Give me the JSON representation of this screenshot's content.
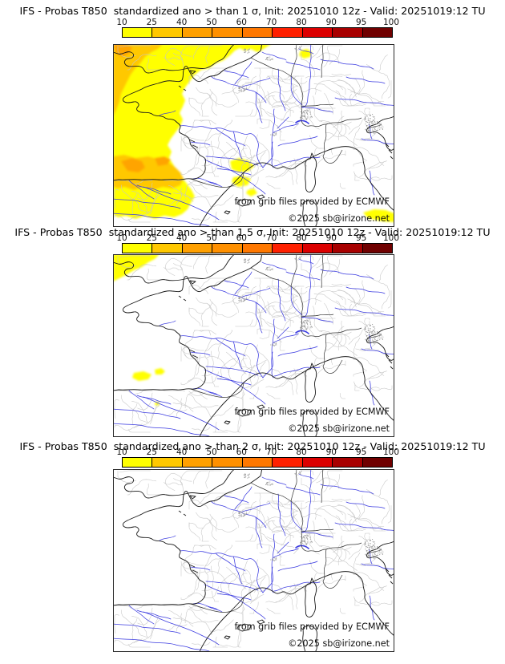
{
  "panels": [
    {
      "title": "IFS - Probas T850  standardized ano > than 1 σ, Init: 20251010 12z - Valid: 20251019:12 TU",
      "threshold_sigma": "1",
      "shading": [
        {
          "color": "#FFFF00",
          "points": [
            [
              167,
              0
            ],
            [
              160,
              4
            ],
            [
              152,
              8
            ],
            [
              146,
              14
            ],
            [
              138,
              20
            ],
            [
              128,
              24
            ],
            [
              120,
              30
            ],
            [
              110,
              32
            ],
            [
              102,
              38
            ],
            [
              96,
              46
            ],
            [
              90,
              54
            ],
            [
              86,
              62
            ],
            [
              90,
              70
            ],
            [
              87,
              78
            ],
            [
              83,
              86
            ],
            [
              87,
              94
            ],
            [
              84,
              102
            ],
            [
              78,
              110
            ],
            [
              72,
              118
            ],
            [
              68,
              126
            ],
            [
              73,
              134
            ],
            [
              70,
              142
            ],
            [
              75,
              150
            ],
            [
              80,
              158
            ],
            [
              86,
              166
            ],
            [
              92,
              174
            ],
            [
              98,
              182
            ],
            [
              102,
              190
            ],
            [
              97,
              198
            ],
            [
              93,
              206
            ],
            [
              86,
              212
            ],
            [
              76,
              216
            ],
            [
              64,
              214
            ],
            [
              52,
              218
            ],
            [
              40,
              214
            ],
            [
              28,
              218
            ],
            [
              16,
              214
            ],
            [
              6,
              216
            ],
            [
              0,
              212
            ],
            [
              0,
              0
            ]
          ]
        },
        {
          "color": "#FFFF00",
          "points": [
            [
              150,
              0
            ],
            [
              156,
              4
            ],
            [
              164,
              8
            ],
            [
              172,
              6
            ],
            [
              180,
              10
            ],
            [
              188,
              6
            ],
            [
              194,
              2
            ],
            [
              198,
              0
            ]
          ]
        },
        {
          "color": "#FFFF00",
          "points": [
            [
              234,
              8
            ],
            [
              242,
              6
            ],
            [
              248,
              10
            ],
            [
              246,
              16
            ],
            [
              238,
              18
            ],
            [
              232,
              14
            ]
          ]
        },
        {
          "color": "#FFFF00",
          "points": [
            [
              146,
              146
            ],
            [
              158,
              142
            ],
            [
              170,
              146
            ],
            [
              176,
              152
            ],
            [
              170,
              158
            ],
            [
              158,
              160
            ],
            [
              148,
              156
            ]
          ]
        },
        {
          "color": "#FFFF00",
          "points": [
            [
              150,
              166
            ],
            [
              162,
              164
            ],
            [
              172,
              168
            ],
            [
              168,
              176
            ],
            [
              156,
              178
            ],
            [
              148,
              172
            ]
          ]
        },
        {
          "color": "#FFFF00",
          "points": [
            [
              168,
              182
            ],
            [
              176,
              180
            ],
            [
              180,
              186
            ],
            [
              172,
              190
            ],
            [
              166,
              186
            ]
          ]
        },
        {
          "color": "#FFFF00",
          "points": [
            [
              312,
              210
            ],
            [
              326,
              206
            ],
            [
              340,
              207
            ],
            [
              351,
              211
            ],
            [
              351,
              222
            ],
            [
              336,
              221
            ],
            [
              318,
              217
            ]
          ]
        },
        {
          "color": "#FFC800",
          "points": [
            [
              62,
              0
            ],
            [
              56,
              6
            ],
            [
              48,
              10
            ],
            [
              40,
              16
            ],
            [
              34,
              24
            ],
            [
              28,
              30
            ],
            [
              22,
              38
            ],
            [
              18,
              46
            ],
            [
              14,
              54
            ],
            [
              10,
              62
            ],
            [
              8,
              72
            ],
            [
              4,
              82
            ],
            [
              0,
              90
            ],
            [
              0,
              0
            ]
          ]
        },
        {
          "color": "#FFC800",
          "points": [
            [
              0,
              140
            ],
            [
              14,
              138
            ],
            [
              28,
              142
            ],
            [
              44,
              140
            ],
            [
              58,
              144
            ],
            [
              70,
              148
            ],
            [
              78,
              154
            ],
            [
              84,
              160
            ],
            [
              88,
              168
            ],
            [
              84,
              176
            ],
            [
              74,
              180
            ],
            [
              62,
              178
            ],
            [
              50,
              182
            ],
            [
              38,
              178
            ],
            [
              26,
              182
            ],
            [
              14,
              178
            ],
            [
              6,
              180
            ],
            [
              0,
              178
            ]
          ]
        },
        {
          "color": "#FFA400",
          "points": [
            [
              0,
              0
            ],
            [
              16,
              0
            ],
            [
              24,
              4
            ],
            [
              20,
              12
            ],
            [
              12,
              16
            ],
            [
              4,
              12
            ]
          ]
        },
        {
          "color": "#FFA400",
          "points": [
            [
              10,
              146
            ],
            [
              24,
              142
            ],
            [
              36,
              146
            ],
            [
              40,
              154
            ],
            [
              32,
              160
            ],
            [
              18,
              158
            ]
          ]
        },
        {
          "color": "#FFA400",
          "points": [
            [
              52,
              142
            ],
            [
              64,
              140
            ],
            [
              72,
              144
            ],
            [
              68,
              150
            ],
            [
              56,
              152
            ]
          ]
        }
      ]
    },
    {
      "title": "IFS - Probas T850  standardized ano > than 1.5 σ, Init: 20251010 12z - Valid: 20251019:12 TU",
      "threshold_sigma": "1.5",
      "shading": [
        {
          "color": "#FFFF00",
          "points": [
            [
              0,
              0
            ],
            [
              58,
              0
            ],
            [
              52,
              6
            ],
            [
              44,
              10
            ],
            [
              36,
              16
            ],
            [
              26,
              20
            ],
            [
              16,
              26
            ],
            [
              8,
              30
            ],
            [
              0,
              34
            ]
          ]
        },
        {
          "color": "#FFFF00",
          "points": [
            [
              26,
              148
            ],
            [
              38,
              146
            ],
            [
              48,
              150
            ],
            [
              44,
              156
            ],
            [
              32,
              158
            ],
            [
              24,
              154
            ]
          ]
        },
        {
          "color": "#FFFF00",
          "points": [
            [
              52,
              144
            ],
            [
              60,
              142
            ],
            [
              65,
              146
            ],
            [
              61,
              150
            ],
            [
              53,
              150
            ]
          ]
        },
        {
          "color": "#FFFF00",
          "points": [
            [
              52,
              185
            ],
            [
              57,
              184
            ],
            [
              58,
              188
            ],
            [
              53,
              189
            ]
          ]
        }
      ]
    },
    {
      "title": "IFS - Probas T850  standardized ano > than 2 σ, Init: 20251010 12z - Valid: 20251019:12 TU",
      "threshold_sigma": "2",
      "shading": []
    }
  ],
  "colorbar": {
    "ticks": [
      "10",
      "25",
      "40",
      "50",
      "60",
      "70",
      "80",
      "90",
      "95",
      "100"
    ],
    "segment_colors": [
      "#FFFF00",
      "#FFC800",
      "#FFA000",
      "#FF9000",
      "#FF7800",
      "#FF2000",
      "#DC0000",
      "#A80000",
      "#700000"
    ]
  },
  "credits": {
    "line1": "from grib files provided by ECMWF",
    "line2": "©2025 sb@irizone.net"
  },
  "map_style": {
    "sea_color": "#FFFFFF",
    "coast_color": "#1a1a1a",
    "border_color": "#333333",
    "admin_color": "#c6c6c6",
    "river_color": "#3b3be0",
    "frame_color": "#2b2b2b",
    "speckle_color": "#9a9a9a",
    "text_color": "#111111"
  }
}
